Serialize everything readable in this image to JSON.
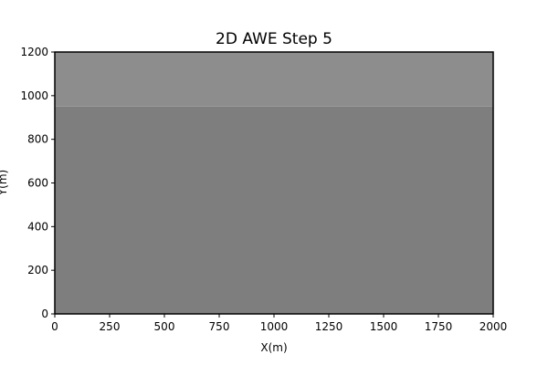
{
  "chart_data": {
    "type": "heatmap",
    "title": "2D AWE Step 5",
    "xlabel": "X(m)",
    "ylabel": "Y(m)",
    "xlim": [
      0,
      2000
    ],
    "ylim": [
      0,
      1200
    ],
    "x_ticks": [
      0,
      250,
      500,
      750,
      1000,
      1250,
      1500,
      1750,
      2000
    ],
    "y_ticks": [
      0,
      200,
      400,
      600,
      800,
      1000,
      1200
    ],
    "colormap": "gray",
    "regions": [
      {
        "y_from": 0,
        "y_to": 950,
        "color": "#7e7e7e"
      },
      {
        "y_from": 950,
        "y_to": 1200,
        "color": "#8d8d8d"
      }
    ],
    "grid": false
  }
}
